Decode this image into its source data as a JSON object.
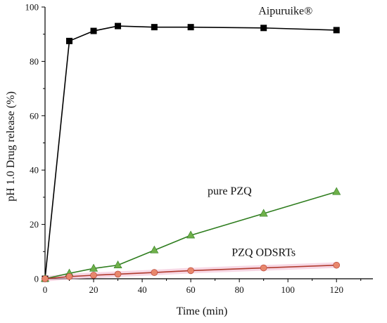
{
  "chart_data": {
    "type": "line",
    "title": "",
    "xlabel": "Time (min)",
    "ylabel": "pH 1.0 Drug release (%)",
    "xlim": [
      0,
      135
    ],
    "ylim": [
      0,
      100
    ],
    "xticks": [
      "0",
      "20",
      "40",
      "60",
      "80",
      "100",
      "120"
    ],
    "yticks": [
      "0",
      "20",
      "40",
      "60",
      "80",
      "100"
    ],
    "grid": false,
    "legend": "inline labels",
    "series": [
      {
        "name": "Aipuruike®",
        "color": "#000000",
        "marker": "square",
        "x": [
          0,
          10,
          20,
          30,
          45,
          60,
          90,
          120
        ],
        "y": [
          0,
          87.5,
          91.2,
          93.0,
          92.6,
          92.6,
          92.3,
          91.5
        ]
      },
      {
        "name": "pure PZQ",
        "color": "#2e7d1e",
        "marker_color": "#6fb04a",
        "marker": "triangle",
        "x": [
          0,
          10,
          20,
          30,
          45,
          60,
          90,
          120
        ],
        "y": [
          0,
          2.0,
          3.8,
          5.0,
          10.5,
          16.0,
          24.0,
          32.0
        ]
      },
      {
        "name": "PZQ ODSRTs",
        "color": "#b03a2e",
        "marker_color": "#e8876c",
        "band_color": "#f0b8d0",
        "marker": "circle",
        "x": [
          0,
          10,
          20,
          30,
          45,
          60,
          90,
          120
        ],
        "y": [
          0,
          0.8,
          1.3,
          1.7,
          2.3,
          3.0,
          4.0,
          5.0
        ]
      }
    ]
  }
}
